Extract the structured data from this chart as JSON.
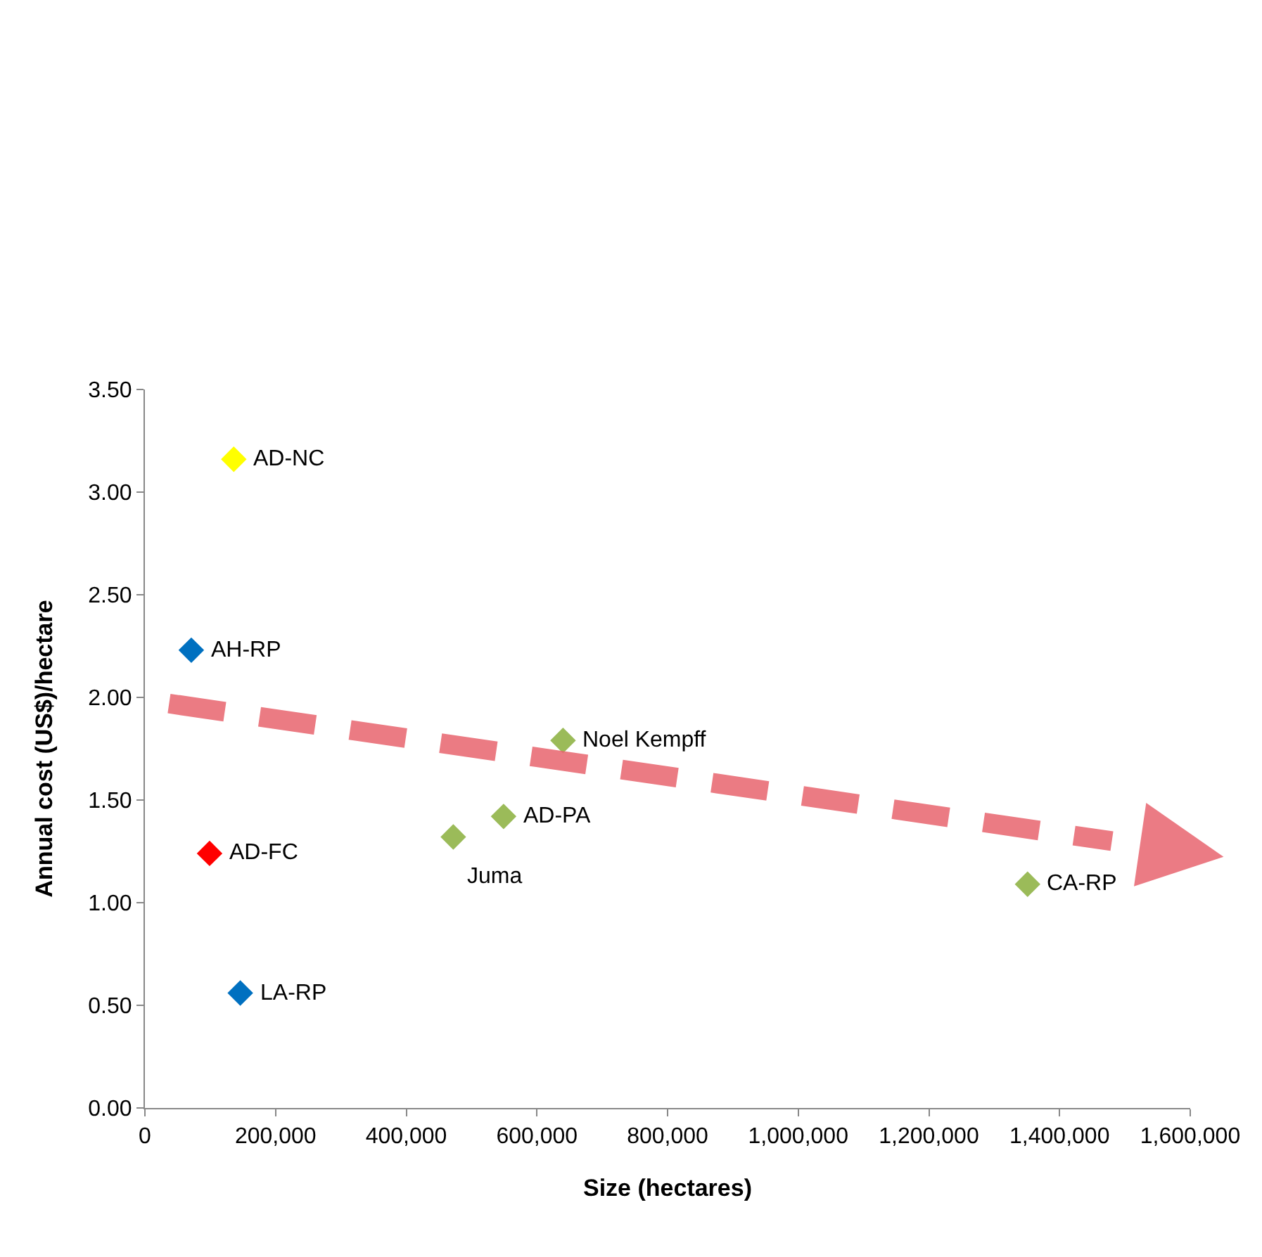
{
  "chart_data": {
    "type": "scatter",
    "xlabel": "Size (hectares)",
    "ylabel": "Annual cost (US$)/hectare",
    "xlim": [
      0,
      1600000
    ],
    "xticks": [
      {
        "value": 0,
        "label": "0"
      },
      {
        "value": 200000,
        "label": "200,000"
      },
      {
        "value": 400000,
        "label": "400,000"
      },
      {
        "value": 600000,
        "label": "600,000"
      },
      {
        "value": 800000,
        "label": "800,000"
      },
      {
        "value": 1000000,
        "label": "1,000,000"
      },
      {
        "value": 1200000,
        "label": "1,200,000"
      },
      {
        "value": 1400000,
        "label": "1,400,000"
      },
      {
        "value": 1600000,
        "label": "1,600,000"
      }
    ],
    "ylim": [
      0,
      3.5
    ],
    "yticks": [
      {
        "value": 0,
        "label": "0.00"
      },
      {
        "value": 0.5,
        "label": "0.50"
      },
      {
        "value": 1,
        "label": "1.00"
      },
      {
        "value": 1.5,
        "label": "1.50"
      },
      {
        "value": 2,
        "label": "2.00"
      },
      {
        "value": 2.5,
        "label": "2.50"
      },
      {
        "value": 3,
        "label": "3.00"
      },
      {
        "value": 3.5,
        "label": "3.50"
      }
    ],
    "grid": false,
    "series": [
      {
        "marker": "diamond",
        "x": [
          136000,
          71000,
          640000,
          549000,
          472000,
          99000,
          146000,
          1351000
        ],
        "values": [
          3.16,
          2.23,
          1.79,
          1.42,
          1.32,
          1.24,
          0.56,
          1.09
        ],
        "colors": [
          "#ffff00",
          "#0070c0",
          "#9bbb59",
          "#9bbb59",
          "#9bbb59",
          "#ff0000",
          "#0070c0",
          "#9bbb59"
        ]
      },
      {
        "type": "line",
        "x": [
          37000,
          1480000
        ],
        "values": [
          1.97,
          1.3
        ],
        "color": "#e8646e",
        "line_style": "dashed"
      }
    ],
    "annotations": [
      {
        "text": "AD-NC",
        "x": 136000,
        "y": 3.16
      },
      {
        "text": "AH-RP",
        "x": 71000,
        "y": 2.23
      },
      {
        "text": "Noel Kempff",
        "x": 640000,
        "y": 1.79
      },
      {
        "text": "AD-PA",
        "x": 549000,
        "y": 1.42
      },
      {
        "text": "Juma",
        "x": 472000,
        "y": 1.32
      },
      {
        "text": "AD-FC",
        "x": 99000,
        "y": 1.24
      },
      {
        "text": "LA-RP",
        "x": 146000,
        "y": 0.56
      },
      {
        "text": "CA-RP",
        "x": 1351000,
        "y": 1.09
      }
    ]
  }
}
